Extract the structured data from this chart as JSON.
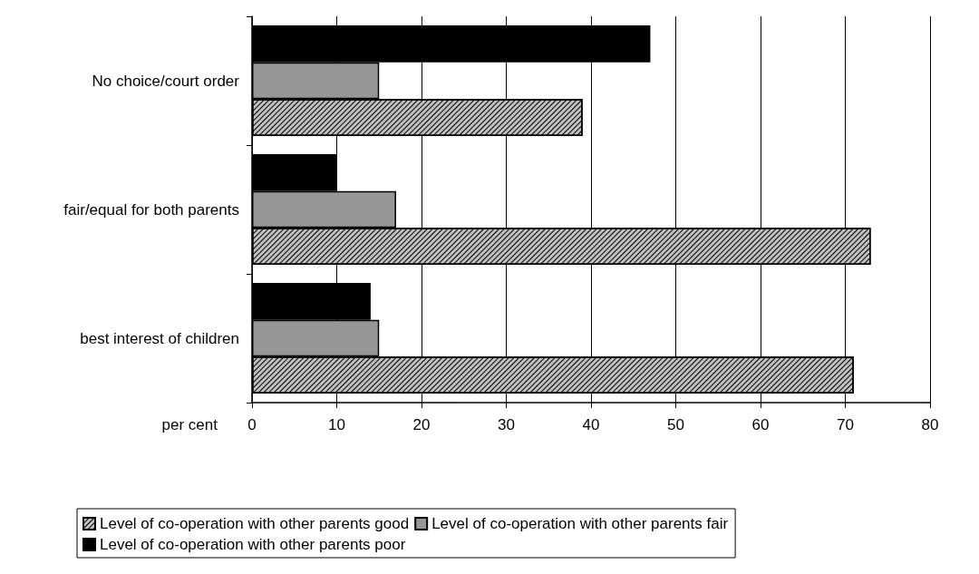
{
  "chart_data": {
    "type": "bar",
    "orientation": "horizontal",
    "xlabel": "per cent",
    "categories": [
      "No choice/court order",
      "fair/equal for both parents",
      "best interest of children"
    ],
    "series": [
      {
        "name": "Level of co-operation with other parents good",
        "color": "#c0c0c0",
        "values": [
          39,
          73,
          71
        ]
      },
      {
        "name": "Level of co-operation with other parents fair",
        "color": "#969696",
        "values": [
          15,
          17,
          15
        ]
      },
      {
        "name": "Level of co-operation with other parents poor",
        "color": "#000000",
        "values": [
          47,
          10,
          14
        ]
      }
    ],
    "xlim": [
      0,
      80
    ],
    "xticks": [
      0,
      10,
      20,
      30,
      40,
      50,
      60,
      70,
      80
    ],
    "grid": "x",
    "legend": "bottom"
  }
}
